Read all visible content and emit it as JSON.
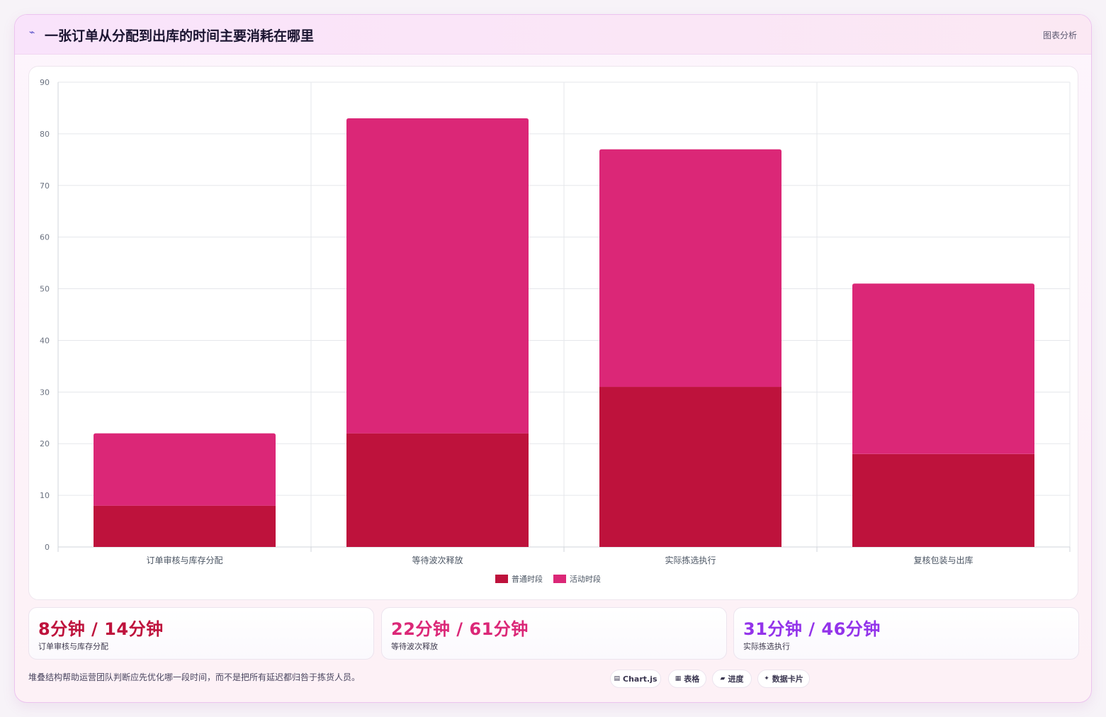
{
  "header": {
    "title": "一张订单从分配到出库的时间主要消耗在哪里",
    "icon": "lightning-icon",
    "tag": "图表分析"
  },
  "chart_data": {
    "type": "bar",
    "stacked": true,
    "categories": [
      "订单审核与库存分配",
      "等待波次释放",
      "实际拣选执行",
      "复核包装与出库"
    ],
    "series": [
      {
        "name": "普通时段",
        "values": [
          8,
          22,
          31,
          18
        ],
        "color": "#be123c"
      },
      {
        "name": "活动时段",
        "values": [
          14,
          61,
          46,
          33
        ],
        "color": "#db2777"
      }
    ],
    "ylim": [
      0,
      90
    ],
    "yticks": [
      0,
      10,
      20,
      30,
      40,
      50,
      60,
      70,
      80,
      90
    ],
    "grid": true,
    "legend": "bottom"
  },
  "stats": [
    {
      "value": "8分钟 / 14分钟",
      "label": "订单审核与库存分配",
      "color": "#be123c"
    },
    {
      "value": "22分钟 / 61分钟",
      "label": "等待波次释放",
      "color": "#db2777"
    },
    {
      "value": "31分钟 / 46分钟",
      "label": "实际拣选执行",
      "color": "#9333ea"
    }
  ],
  "footnote": "堆叠结构帮助运营团队判断应先优化哪一段时间，而不是把所有延迟都归咎于拣货人员。",
  "chips": [
    {
      "icon": "▤",
      "label": "Chart.js"
    },
    {
      "icon": "▦",
      "label": "表格"
    },
    {
      "icon": "▰",
      "label": "进度"
    },
    {
      "icon": "✦",
      "label": "数据卡片"
    }
  ]
}
